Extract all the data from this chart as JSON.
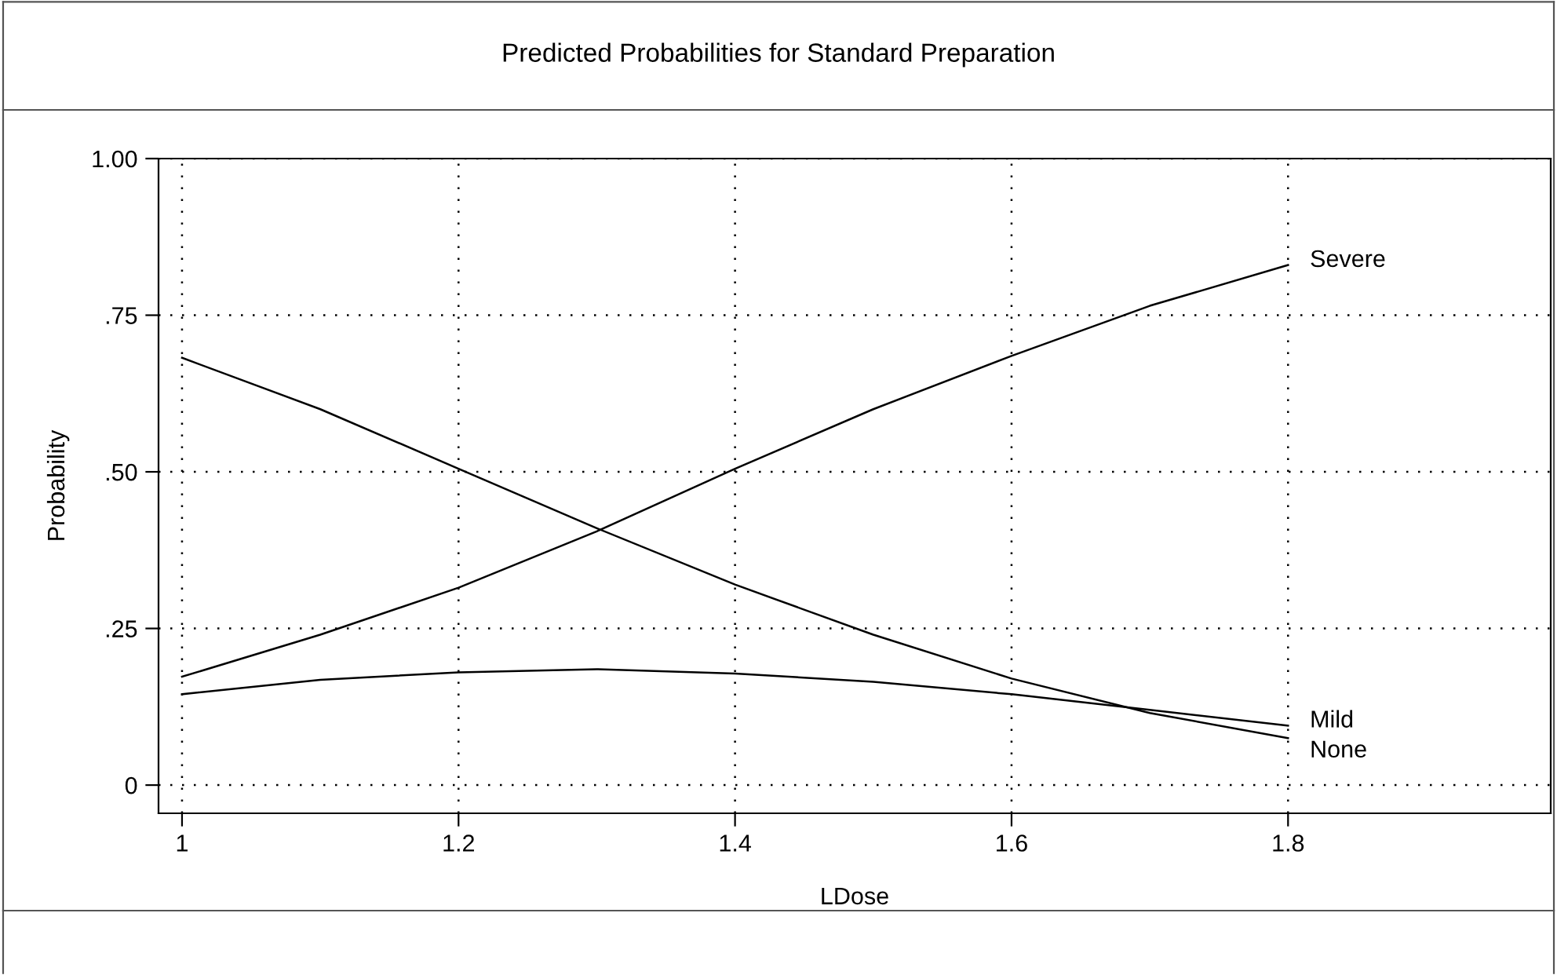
{
  "chart_data": {
    "type": "line",
    "title": "Predicted Probabilities for Standard Preparation",
    "xlabel": "LDose",
    "ylabel": "Probability",
    "x": [
      1.0,
      1.1,
      1.2,
      1.3,
      1.4,
      1.5,
      1.6,
      1.7,
      1.8
    ],
    "series": [
      {
        "name": "Severe",
        "color": "#000000",
        "values": [
          0.173,
          0.24,
          0.315,
          0.405,
          0.505,
          0.6,
          0.685,
          0.765,
          0.83
        ]
      },
      {
        "name": "Mild",
        "color": "#000000",
        "values": [
          0.145,
          0.168,
          0.18,
          0.185,
          0.178,
          0.165,
          0.145,
          0.12,
          0.095
        ]
      },
      {
        "name": "None",
        "color": "#000000",
        "values": [
          0.682,
          0.6,
          0.505,
          0.41,
          0.32,
          0.24,
          0.17,
          0.115,
          0.075
        ]
      }
    ],
    "xlim": [
      0.983,
      1.99
    ],
    "ylim": [
      -0.045,
      1.0
    ],
    "xticks": [
      1,
      1.2,
      1.4,
      1.6,
      1.8
    ],
    "yticks": [
      {
        "value": 0,
        "label": "0"
      },
      {
        "value": 0.25,
        "label": ".25"
      },
      {
        "value": 0.5,
        "label": ".50"
      },
      {
        "value": 0.75,
        "label": ".75"
      },
      {
        "value": 1.0,
        "label": "1.00"
      }
    ],
    "grid": true,
    "legend": false,
    "marker": "none",
    "line_style": "solid"
  }
}
